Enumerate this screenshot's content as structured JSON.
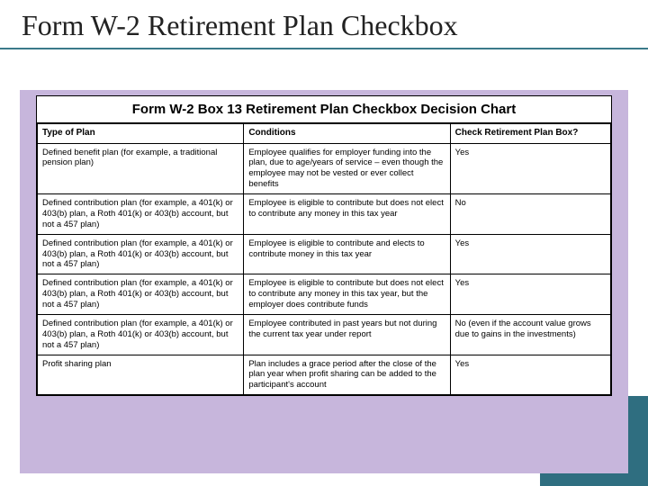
{
  "slide": {
    "title": "Form W-2 Retirement Plan Checkbox",
    "title_color": "#222222",
    "title_underline_color": "#3a7a8a",
    "title_fontsize": 32,
    "background_color": "#ffffff",
    "accent_purple": "#c7b6dc",
    "accent_teal": "#2f6e80"
  },
  "chart": {
    "title": "Form W-2 Box 13 Retirement Plan Checkbox Decision Chart",
    "title_fontsize": 15,
    "border_color": "#000000",
    "cell_fontsize": 9.5,
    "columns": [
      {
        "label": "Type of Plan",
        "width_pct": 36
      },
      {
        "label": "Conditions",
        "width_pct": 36
      },
      {
        "label": "Check Retirement Plan Box?",
        "width_pct": 28
      }
    ],
    "rows": [
      {
        "type": "Defined benefit plan (for example, a traditional pension plan)",
        "conditions": "Employee qualifies for employer funding into the plan, due to age/years of service – even though the employee may not be vested or ever collect benefits",
        "check": "Yes"
      },
      {
        "type": "Defined contribution plan (for example, a 401(k) or 403(b) plan, a Roth 401(k) or 403(b) account, but not a 457 plan)",
        "conditions": "Employee is eligible to contribute but does not elect to contribute any money in this tax year",
        "check": "No"
      },
      {
        "type": "Defined contribution plan (for example, a 401(k) or 403(b) plan, a Roth 401(k) or 403(b) account, but not a 457 plan)",
        "conditions": "Employee is eligible to contribute and elects to contribute money in this tax year",
        "check": "Yes"
      },
      {
        "type": "Defined contribution plan (for example, a 401(k) or 403(b) plan, a Roth 401(k) or 403(b) account, but not a 457 plan)",
        "conditions": "Employee is eligible to contribute but does not elect to contribute any money in this tax year, but the employer does contribute funds",
        "check": "Yes"
      },
      {
        "type": "Defined contribution plan (for example, a 401(k) or 403(b) plan, a Roth 401(k) or 403(b) account, but not a 457 plan)",
        "conditions": "Employee contributed in past years but not during the current tax year under report",
        "check": "No (even if the account value grows due to gains in the investments)"
      },
      {
        "type": "Profit sharing plan",
        "conditions": "Plan includes a grace period after the close of the plan year when profit sharing can be added to the participant's account",
        "check": "Yes"
      }
    ]
  }
}
